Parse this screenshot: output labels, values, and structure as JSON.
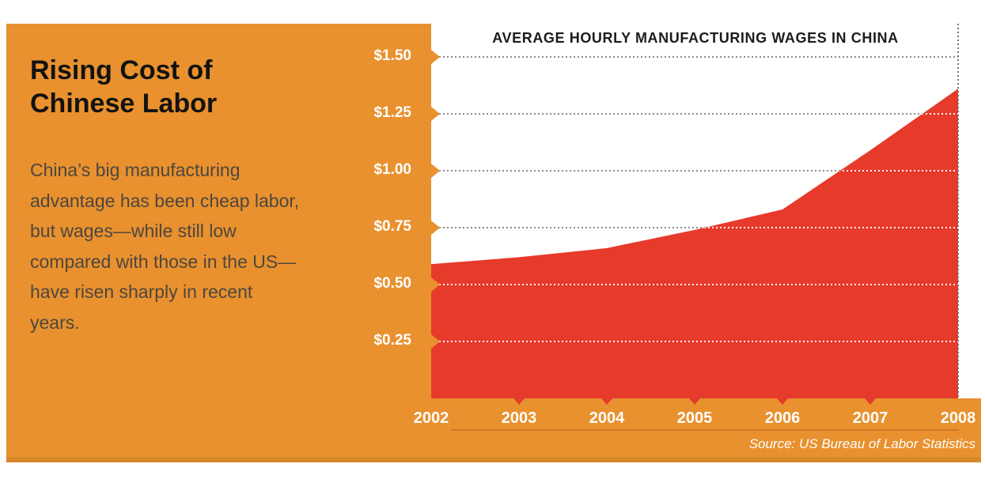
{
  "panel": {
    "title": "Rising Cost of Chinese Labor",
    "title_lines": [
      "Rising Cost of",
      "Chinese Labor"
    ],
    "body": "China’s big manufacturing advantage has been cheap labor, but wages—while still low compared with those in the US—have risen sharply in recent years.",
    "body_lines": [
      "China’s big manufacturing",
      "advantage has been cheap labor,",
      "but wages—while still low",
      "compared with those in the US—",
      "have risen sharply in recent",
      "years."
    ]
  },
  "chart_data": {
    "type": "area",
    "title": "AVERAGE HOURLY MANUFACTURING WAGES IN CHINA",
    "x": [
      "2002",
      "2003",
      "2004",
      "2005",
      "2006",
      "2007",
      "2008"
    ],
    "values": [
      0.59,
      0.62,
      0.66,
      0.74,
      0.83,
      1.09,
      1.36
    ],
    "xlabel": "",
    "ylabel": "",
    "ylim": [
      0,
      1.65
    ],
    "ytick_values": [
      0.25,
      0.5,
      0.75,
      1.0,
      1.25,
      1.5
    ],
    "ytick_labels": [
      "$0.25",
      "$0.50",
      "$0.75",
      "$1.00",
      "$1.25",
      "$1.50"
    ],
    "grid": "horizontal dotted lines at each $0.25; dotted vertical marker line at 2008",
    "legend": "none",
    "source": "Source: US Bureau of Labor Statistics"
  },
  "colors": {
    "panel_orange": "#E8912E",
    "area_red": "#E63A2B",
    "grid_gray": "#8C8C8C",
    "grid_on_red_white": "#FFFFFF",
    "marker_line_gray": "#707070",
    "heading_text": "#121212",
    "body_text": "#4E463E",
    "chart_title_text": "#1C1C1C",
    "tick_text_white": "#FFFFFF"
  }
}
